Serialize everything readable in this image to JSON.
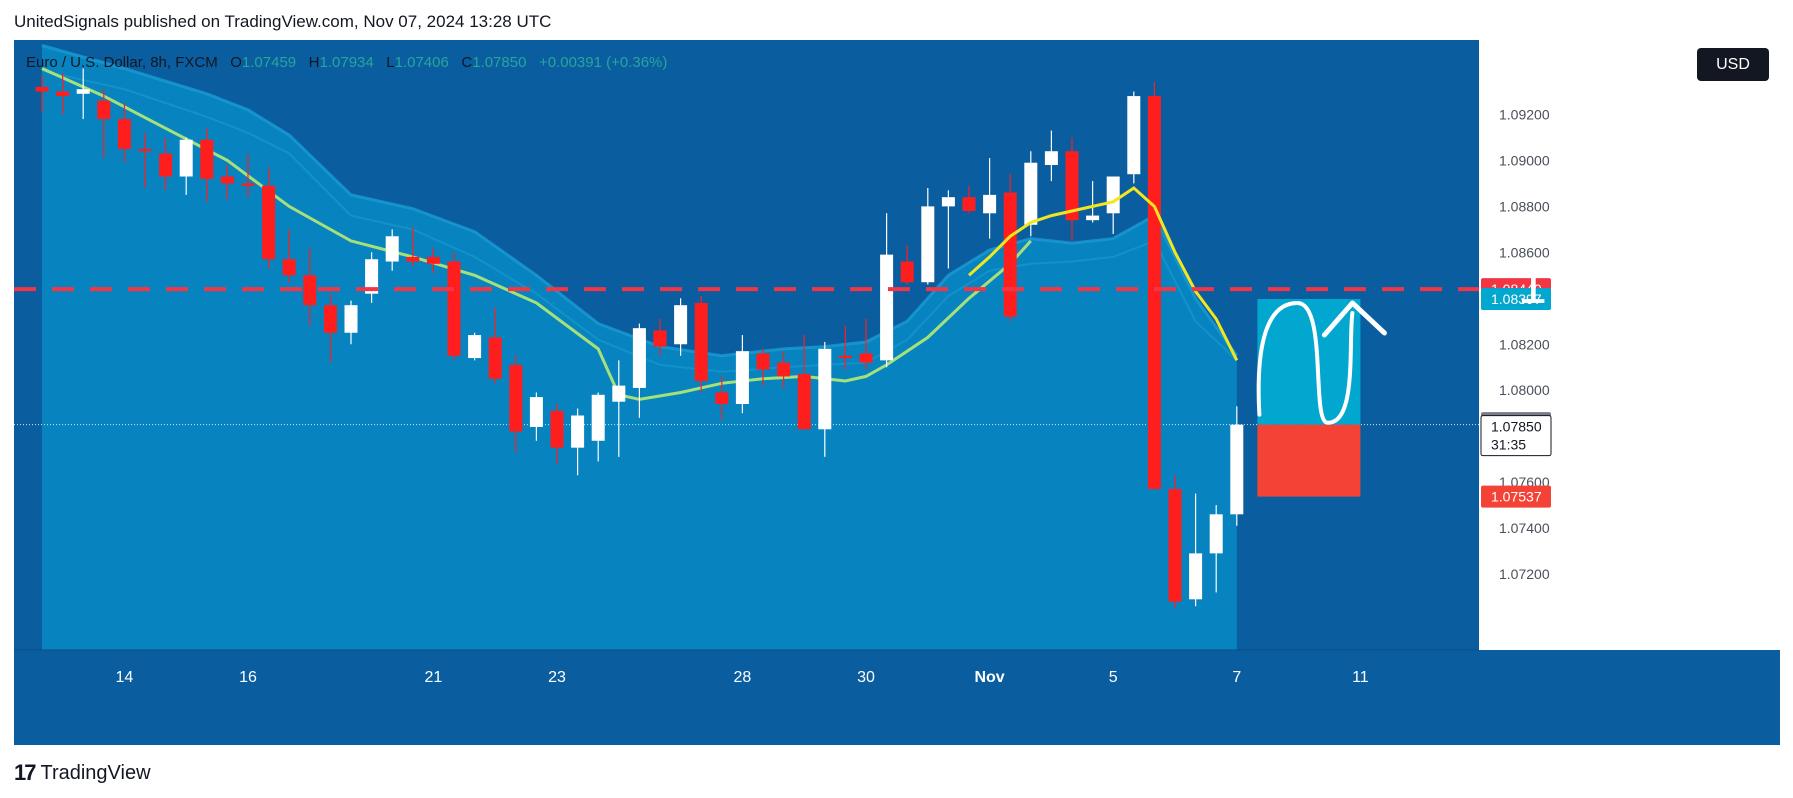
{
  "header": {
    "published_text": "UnitedSignals published on TradingView.com, Nov 07, 2024 13:28 UTC"
  },
  "symbol": {
    "name": "Euro / U.S. Dollar, 8h, FXCM",
    "o_label": "O",
    "open": "1.07459",
    "h_label": "H",
    "high": "1.07934",
    "l_label": "L",
    "low": "1.07406",
    "c_label": "C",
    "close": "1.07850",
    "change": "+0.00391 (+0.36%)"
  },
  "currency_button": "USD",
  "annotation": {
    "target_text": "1.0844"
  },
  "footer": {
    "logo_glyph": "17",
    "brand": "TradingView"
  },
  "colors": {
    "background": "#0a5ea0",
    "band": "#0784c0",
    "band_edge": "#1a9bd2",
    "bull": "#ffffff",
    "bear": "#ff1e1e",
    "ma_fast": "#f2e71e",
    "ma_slow": "#a6e07a",
    "resistance_line": "#f23645",
    "target_box": "#01a7cf",
    "stop_box": "#f44336"
  },
  "chart_data": {
    "type": "candlestick",
    "y_range": [
      1.07,
      1.0935
    ],
    "y_ticks": [
      "1.09200",
      "1.09000",
      "1.08800",
      "1.08600",
      "1.08400",
      "1.08200",
      "1.08000",
      "1.07800",
      "1.07600",
      "1.07400",
      "1.07200"
    ],
    "x_labels": [
      "14",
      "16",
      "21",
      "23",
      "28",
      "30",
      "Nov",
      "5",
      "7",
      "11"
    ],
    "x_label_idx": [
      4,
      10,
      19,
      25,
      34,
      40,
      46,
      52,
      58,
      64
    ],
    "candles": [
      {
        "o": 1.0932,
        "h": 1.0937,
        "l": 1.0921,
        "c": 1.093
      },
      {
        "o": 1.093,
        "h": 1.0938,
        "l": 1.092,
        "c": 1.0928
      },
      {
        "o": 1.0929,
        "h": 1.094,
        "l": 1.0918,
        "c": 1.0931
      },
      {
        "o": 1.0926,
        "h": 1.0931,
        "l": 1.0901,
        "c": 1.0918
      },
      {
        "o": 1.0918,
        "h": 1.0925,
        "l": 1.0899,
        "c": 1.0905
      },
      {
        "o": 1.0905,
        "h": 1.0912,
        "l": 1.0888,
        "c": 1.0904
      },
      {
        "o": 1.0903,
        "h": 1.091,
        "l": 1.0887,
        "c": 1.0893
      },
      {
        "o": 1.0893,
        "h": 1.091,
        "l": 1.0885,
        "c": 1.0909
      },
      {
        "o": 1.0909,
        "h": 1.0914,
        "l": 1.0882,
        "c": 1.0892
      },
      {
        "o": 1.0893,
        "h": 1.0898,
        "l": 1.0883,
        "c": 1.089
      },
      {
        "o": 1.089,
        "h": 1.0903,
        "l": 1.0884,
        "c": 1.0889
      },
      {
        "o": 1.0889,
        "h": 1.0897,
        "l": 1.0853,
        "c": 1.0857
      },
      {
        "o": 1.0857,
        "h": 1.087,
        "l": 1.0847,
        "c": 1.085
      },
      {
        "o": 1.085,
        "h": 1.0862,
        "l": 1.0828,
        "c": 1.0837
      },
      {
        "o": 1.0837,
        "h": 1.0842,
        "l": 1.0812,
        "c": 1.0825
      },
      {
        "o": 1.0825,
        "h": 1.0839,
        "l": 1.082,
        "c": 1.0837
      },
      {
        "o": 1.0842,
        "h": 1.086,
        "l": 1.0838,
        "c": 1.0857
      },
      {
        "o": 1.0856,
        "h": 1.087,
        "l": 1.0852,
        "c": 1.0867
      },
      {
        "o": 1.0858,
        "h": 1.0871,
        "l": 1.0854,
        "c": 1.0856
      },
      {
        "o": 1.0858,
        "h": 1.0862,
        "l": 1.0851,
        "c": 1.0855
      },
      {
        "o": 1.0856,
        "h": 1.086,
        "l": 1.0813,
        "c": 1.0815
      },
      {
        "o": 1.0814,
        "h": 1.0825,
        "l": 1.0813,
        "c": 1.0824
      },
      {
        "o": 1.0823,
        "h": 1.0836,
        "l": 1.0803,
        "c": 1.0805
      },
      {
        "o": 1.0811,
        "h": 1.0815,
        "l": 1.0773,
        "c": 1.0782
      },
      {
        "o": 1.0784,
        "h": 1.0799,
        "l": 1.0778,
        "c": 1.0797
      },
      {
        "o": 1.0791,
        "h": 1.0794,
        "l": 1.0768,
        "c": 1.0775
      },
      {
        "o": 1.0775,
        "h": 1.0792,
        "l": 1.0763,
        "c": 1.0789
      },
      {
        "o": 1.0778,
        "h": 1.0799,
        "l": 1.0769,
        "c": 1.0798
      },
      {
        "o": 1.0795,
        "h": 1.0813,
        "l": 1.0771,
        "c": 1.0802
      },
      {
        "o": 1.0801,
        "h": 1.0829,
        "l": 1.0788,
        "c": 1.0827
      },
      {
        "o": 1.0826,
        "h": 1.0831,
        "l": 1.0815,
        "c": 1.0819
      },
      {
        "o": 1.082,
        "h": 1.084,
        "l": 1.0815,
        "c": 1.0837
      },
      {
        "o": 1.0838,
        "h": 1.0841,
        "l": 1.0799,
        "c": 1.0804
      },
      {
        "o": 1.0799,
        "h": 1.0806,
        "l": 1.0787,
        "c": 1.0794
      },
      {
        "o": 1.0794,
        "h": 1.0824,
        "l": 1.079,
        "c": 1.0817
      },
      {
        "o": 1.0816,
        "h": 1.0818,
        "l": 1.0802,
        "c": 1.0809
      },
      {
        "o": 1.0812,
        "h": 1.0817,
        "l": 1.0801,
        "c": 1.0806
      },
      {
        "o": 1.0807,
        "h": 1.0824,
        "l": 1.0783,
        "c": 1.0783
      },
      {
        "o": 1.0783,
        "h": 1.0821,
        "l": 1.0771,
        "c": 1.0818
      },
      {
        "o": 1.0815,
        "h": 1.0828,
        "l": 1.0809,
        "c": 1.0814
      },
      {
        "o": 1.0816,
        "h": 1.0831,
        "l": 1.0809,
        "c": 1.0812
      },
      {
        "o": 1.0813,
        "h": 1.0877,
        "l": 1.081,
        "c": 1.0859
      },
      {
        "o": 1.0856,
        "h": 1.0863,
        "l": 1.0846,
        "c": 1.0847
      },
      {
        "o": 1.0847,
        "h": 1.0888,
        "l": 1.0846,
        "c": 1.088
      },
      {
        "o": 1.088,
        "h": 1.0887,
        "l": 1.0853,
        "c": 1.0884
      },
      {
        "o": 1.0884,
        "h": 1.0889,
        "l": 1.0877,
        "c": 1.0878
      },
      {
        "o": 1.0877,
        "h": 1.0901,
        "l": 1.0866,
        "c": 1.0885
      },
      {
        "o": 1.0886,
        "h": 1.0894,
        "l": 1.083,
        "c": 1.0832
      },
      {
        "o": 1.0872,
        "h": 1.0904,
        "l": 1.0867,
        "c": 1.0899
      },
      {
        "o": 1.0898,
        "h": 1.0913,
        "l": 1.0891,
        "c": 1.0904
      },
      {
        "o": 1.0904,
        "h": 1.091,
        "l": 1.0865,
        "c": 1.0874
      },
      {
        "o": 1.0874,
        "h": 1.0891,
        "l": 1.0873,
        "c": 1.0876
      },
      {
        "o": 1.0877,
        "h": 1.0892,
        "l": 1.0868,
        "c": 1.0893
      },
      {
        "o": 1.0894,
        "h": 1.093,
        "l": 1.089,
        "c": 1.0928
      },
      {
        "o": 1.0928,
        "h": 1.0934,
        "l": 1.0757,
        "c": 1.0757
      },
      {
        "o": 1.0757,
        "h": 1.0763,
        "l": 1.0705,
        "c": 1.0708
      },
      {
        "o": 1.0709,
        "h": 1.0755,
        "l": 1.0706,
        "c": 1.0729
      },
      {
        "o": 1.0729,
        "h": 1.075,
        "l": 1.0712,
        "c": 1.0746
      },
      {
        "o": 1.0746,
        "h": 1.0793,
        "l": 1.0741,
        "c": 1.0785
      }
    ],
    "ma_fast": [
      [
        45,
        1.085
      ],
      [
        46,
        1.0858
      ],
      [
        47,
        1.0867
      ],
      [
        48,
        1.0873
      ],
      [
        49,
        1.0876
      ],
      [
        50,
        1.0878
      ],
      [
        51,
        1.088
      ],
      [
        52,
        1.0882
      ],
      [
        53,
        1.0888
      ],
      [
        54,
        1.088
      ],
      [
        55,
        1.086
      ],
      [
        56,
        1.0843
      ],
      [
        57,
        1.0831
      ],
      [
        58,
        1.0813
      ]
    ],
    "ma_slow": [
      [
        0,
        1.094
      ],
      [
        3,
        1.0928
      ],
      [
        6,
        1.0914
      ],
      [
        9,
        1.09
      ],
      [
        12,
        1.088
      ],
      [
        15,
        1.0865
      ],
      [
        18,
        1.0858
      ],
      [
        21,
        1.085
      ],
      [
        24,
        1.0838
      ],
      [
        27,
        1.0818
      ],
      [
        28,
        1.0798
      ],
      [
        29,
        1.0796
      ],
      [
        31,
        1.0799
      ],
      [
        33,
        1.0803
      ],
      [
        35,
        1.0805
      ],
      [
        37,
        1.0806
      ],
      [
        39,
        1.0804
      ],
      [
        40,
        1.0806
      ],
      [
        41,
        1.0811
      ],
      [
        43,
        1.0823
      ],
      [
        45,
        1.084
      ],
      [
        47,
        1.0855
      ],
      [
        48,
        1.0865
      ]
    ],
    "band_upper": [
      [
        0,
        1.095
      ],
      [
        4,
        1.094
      ],
      [
        8,
        1.0929
      ],
      [
        10,
        1.0922
      ],
      [
        12,
        1.0911
      ],
      [
        15,
        1.0885
      ],
      [
        18,
        1.0879
      ],
      [
        21,
        1.0869
      ],
      [
        24,
        1.085
      ],
      [
        27,
        1.0829
      ],
      [
        30,
        1.0819
      ],
      [
        33,
        1.0815
      ],
      [
        36,
        1.0818
      ],
      [
        38,
        1.0819
      ],
      [
        40,
        1.0821
      ],
      [
        42,
        1.083
      ],
      [
        44,
        1.085
      ],
      [
        46,
        1.0861
      ],
      [
        48,
        1.0866
      ],
      [
        50,
        1.0864
      ],
      [
        52,
        1.0866
      ],
      [
        54,
        1.0876
      ],
      [
        56,
        1.084
      ],
      [
        58,
        1.0815
      ]
    ],
    "band_lower": [
      [
        0,
        1.0939
      ],
      [
        4,
        1.0931
      ],
      [
        8,
        1.0919
      ],
      [
        10,
        1.0912
      ],
      [
        12,
        1.0903
      ],
      [
        15,
        1.0876
      ],
      [
        18,
        1.087
      ],
      [
        21,
        1.0858
      ],
      [
        24,
        1.0842
      ],
      [
        27,
        1.0822
      ],
      [
        30,
        1.0811
      ],
      [
        33,
        1.0808
      ],
      [
        36,
        1.081
      ],
      [
        38,
        1.0811
      ],
      [
        40,
        1.0812
      ],
      [
        42,
        1.0822
      ],
      [
        44,
        1.0841
      ],
      [
        46,
        1.0852
      ],
      [
        48,
        1.0855
      ],
      [
        50,
        1.0856
      ],
      [
        52,
        1.0858
      ],
      [
        54,
        1.0865
      ],
      [
        56,
        1.083
      ],
      [
        58,
        1.0813
      ]
    ],
    "resistance_level": 1.0844,
    "current_price_line": 1.0785,
    "position_tool": {
      "start_idx": 59.0,
      "end_idx": 64.0,
      "entry": 1.0785,
      "target": 1.08397,
      "stop": 1.07537
    },
    "price_labels": [
      {
        "text": "1.08440",
        "value": 1.0844,
        "color": "#f23645"
      },
      {
        "text": "1.08397",
        "value": 1.08397,
        "color": "#01a7cf"
      },
      {
        "text": "1.07857",
        "value": 1.07857,
        "color": "#787b86"
      },
      {
        "text": "1.07537",
        "value": 1.07537,
        "color": "#f44336"
      }
    ],
    "current_label": {
      "price": "1.07850",
      "countdown": "31:35"
    }
  }
}
